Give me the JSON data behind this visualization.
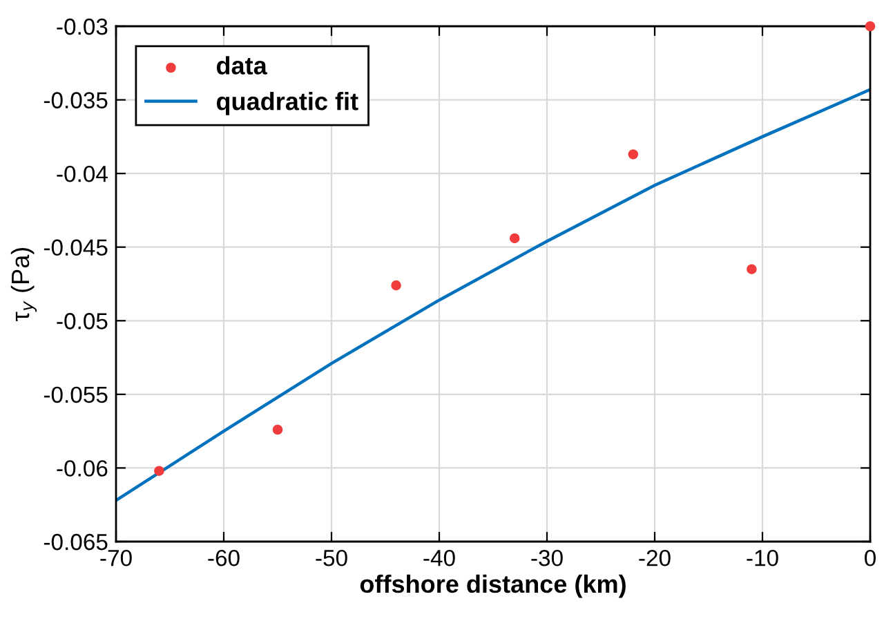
{
  "chart_data": {
    "type": "scatter",
    "xlabel": "offshore distance (km)",
    "ylabel": "τ$_{y}$ (Pa)",
    "xlim": [
      -70,
      0
    ],
    "xticks": [
      -70,
      -60,
      -50,
      -40,
      -30,
      -20,
      -10,
      0
    ],
    "ylim": [
      -0.065,
      -0.03
    ],
    "yticks": [
      -0.065,
      -0.06,
      -0.055,
      -0.05,
      -0.045,
      -0.04,
      -0.035,
      -0.03
    ],
    "grid": true,
    "legend": "top left",
    "series": [
      {
        "name": "data",
        "marker": "circle",
        "color": "#f03c3c",
        "x": [
          -66,
          -55,
          -44,
          -33,
          -22,
          -11,
          0
        ],
        "values": [
          -0.0602,
          -0.0574,
          -0.0476,
          -0.0444,
          -0.0387,
          -0.0465,
          -0.03
        ]
      },
      {
        "name": "quadratic fit",
        "type": "line",
        "marker": "none",
        "line_style": "solid",
        "color": "#0072bd",
        "x": [
          -70,
          -60,
          -50,
          -40,
          -30,
          -20,
          -10,
          0
        ],
        "values": [
          -0.0622,
          -0.0575,
          -0.0529,
          -0.0486,
          -0.0446,
          -0.0408,
          -0.0375,
          -0.0343
        ]
      }
    ]
  }
}
